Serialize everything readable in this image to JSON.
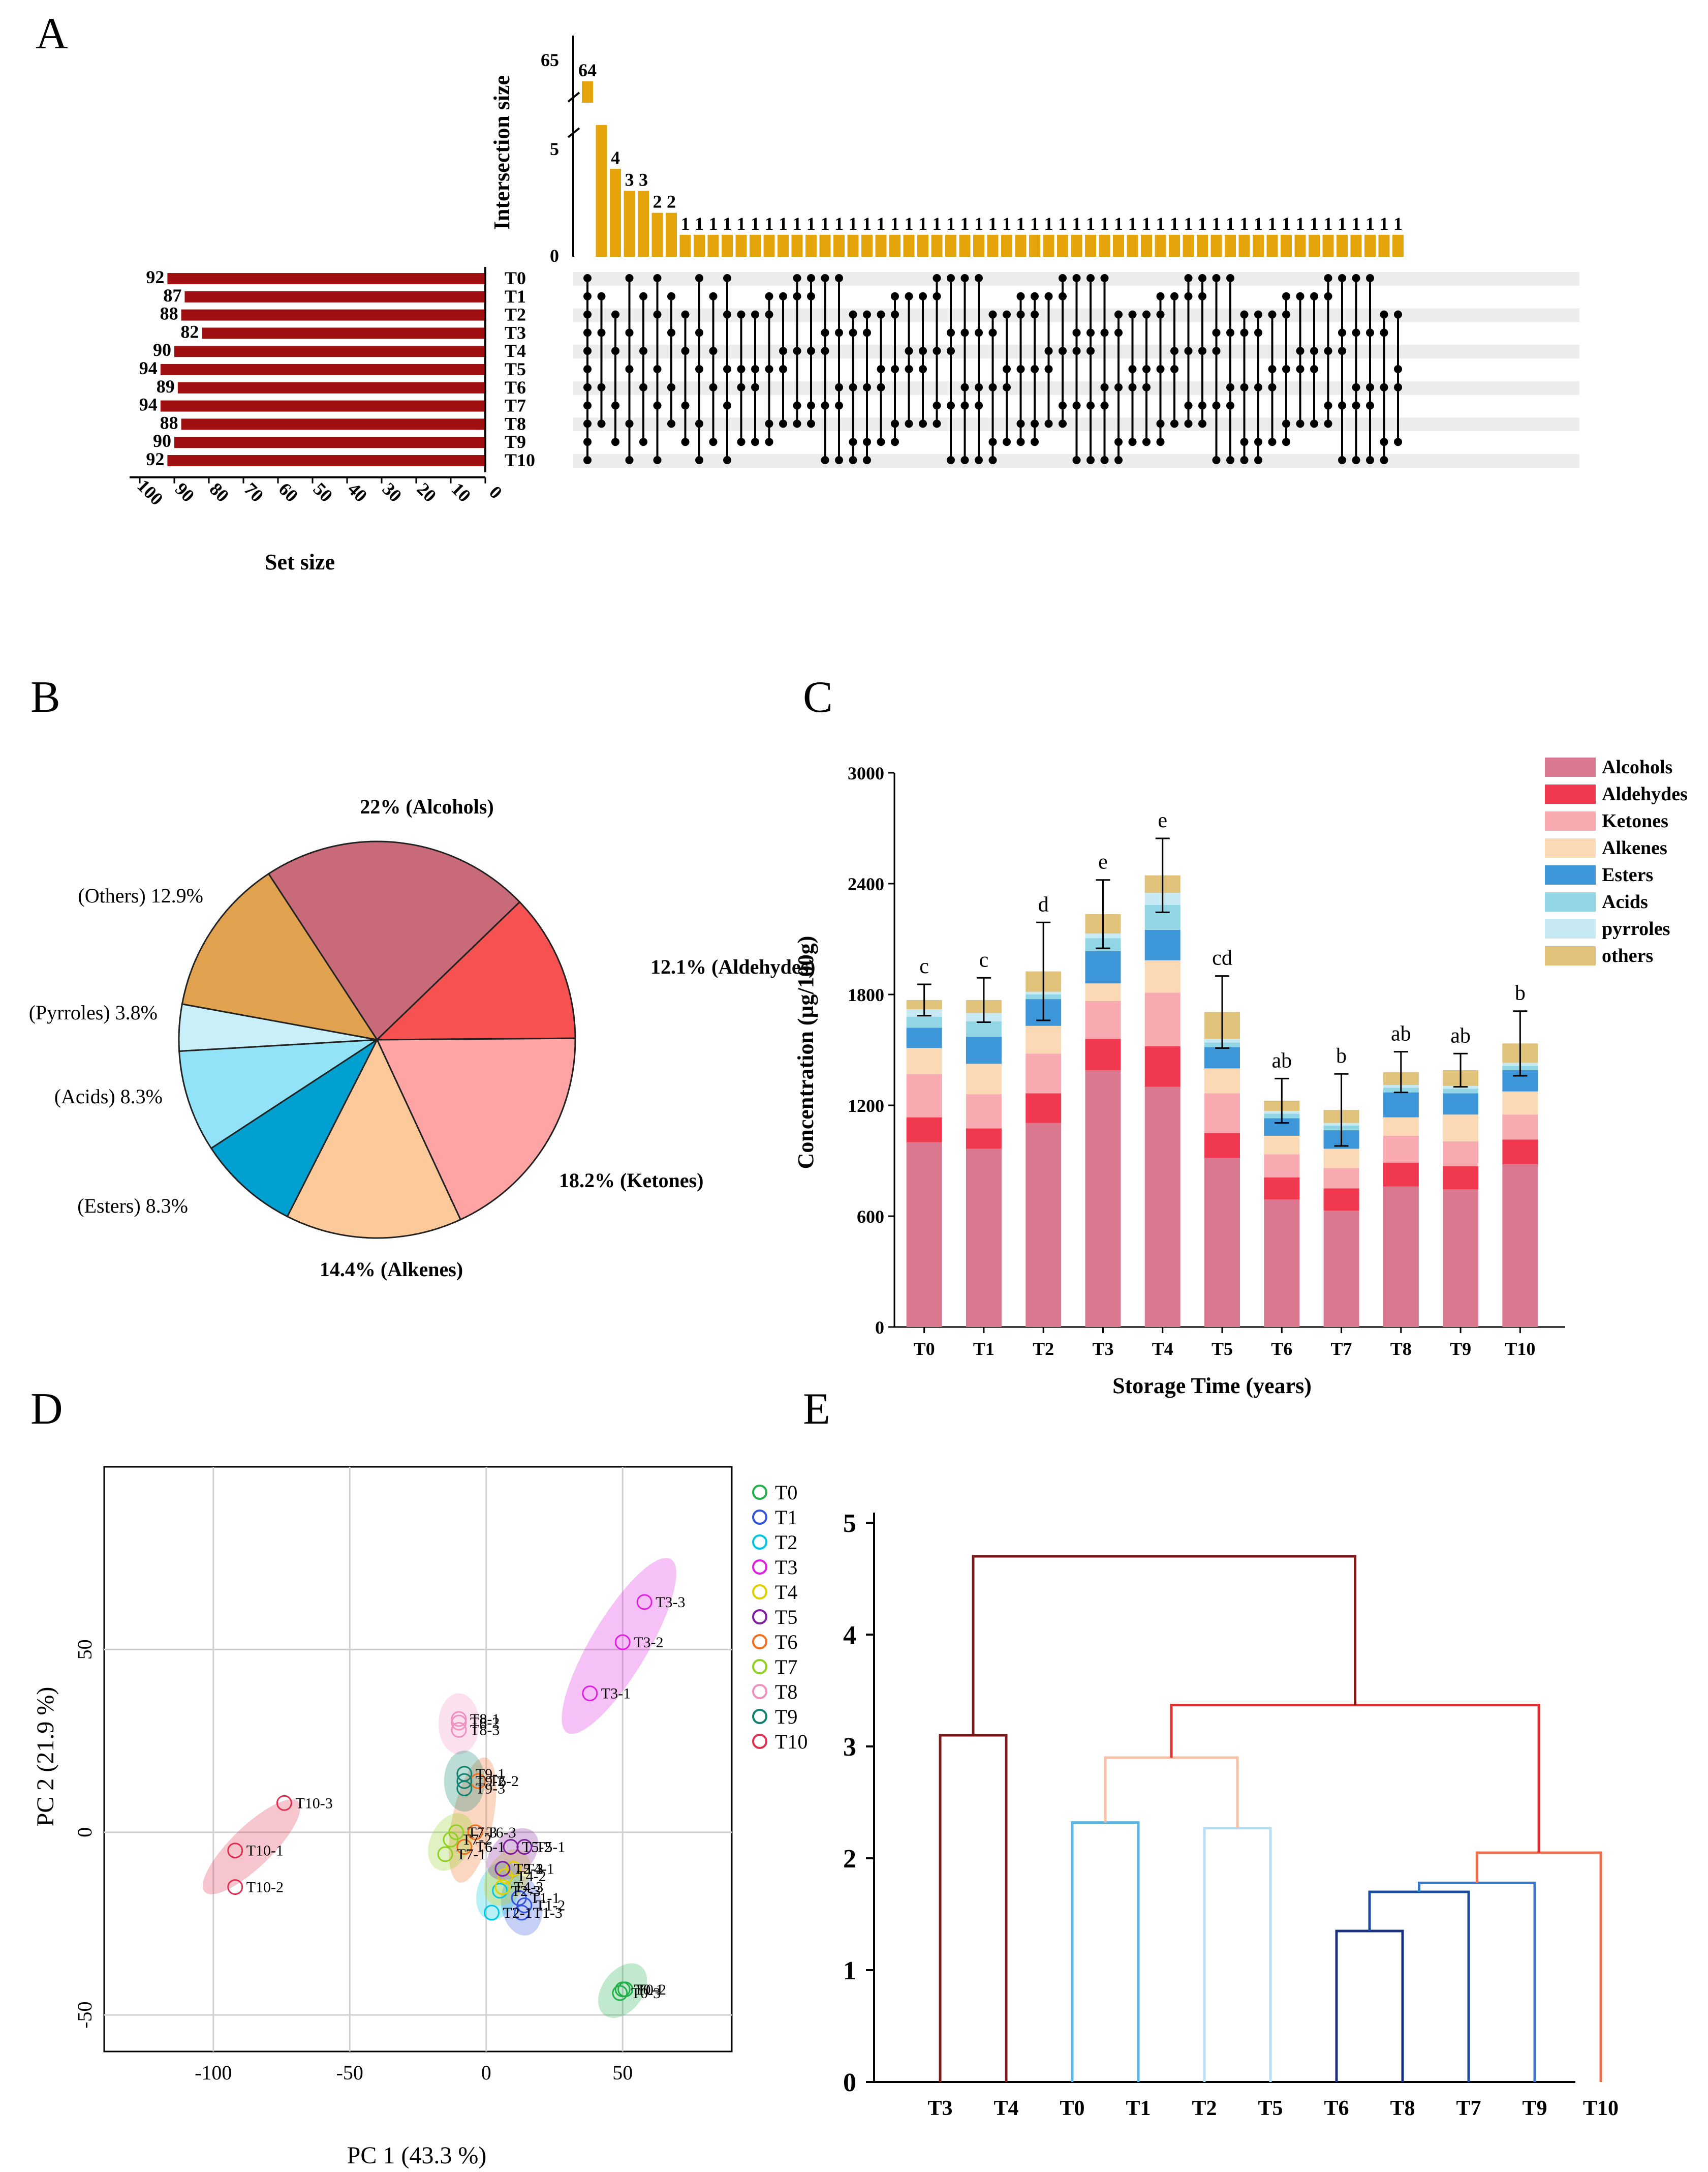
{
  "panels": {
    "a": "A",
    "b": "B",
    "c": "C",
    "d": "D",
    "e": "E"
  },
  "colors": {
    "upset_bar": "#E5A50A",
    "setsize_bar": "#A01010",
    "alcohols": "#D9788F",
    "aldehydes": "#F0384F",
    "ketones": "#F8AAB0",
    "alkenes": "#FCD9B5",
    "esters": "#3D96D8",
    "acids": "#92D6E6",
    "pyrroles": "#C7E9F4",
    "others": "#E0C27A"
  },
  "chart_data": [
    {
      "id": "A",
      "type": "bar",
      "title": "",
      "ylabel": "Intersection size",
      "xlabel": "Set size",
      "y_ticks_upper": [
        "65"
      ],
      "y_ticks_lower": [
        "5",
        "0"
      ],
      "intersection_sizes": [
        64,
        6,
        4,
        3,
        3,
        2,
        2,
        1,
        1,
        1,
        1,
        1,
        1,
        1,
        1,
        1,
        1,
        1,
        1,
        1,
        1,
        1,
        1,
        1,
        1,
        1,
        1,
        1,
        1,
        1,
        1,
        1,
        1,
        1,
        1,
        1,
        1,
        1,
        1,
        1,
        1,
        1,
        1,
        1,
        1,
        1,
        1,
        1,
        1,
        1,
        1,
        1,
        1,
        1,
        1,
        1,
        1,
        1,
        1
      ],
      "intersection_labels": [
        "64",
        "",
        "4",
        "3",
        "3",
        "2",
        "2",
        "1",
        "1",
        "1",
        "1",
        "1",
        "1",
        "1",
        "1",
        "1",
        "1",
        "1",
        "1",
        "1",
        "1",
        "1",
        "1",
        "1",
        "1",
        "1",
        "1",
        "1",
        "1",
        "1",
        "1",
        "1",
        "1",
        "1",
        "1",
        "1",
        "1",
        "1",
        "1",
        "1",
        "1",
        "1",
        "1",
        "1",
        "1",
        "1",
        "1",
        "1",
        "1",
        "1",
        "1",
        "1",
        "1",
        "1",
        "1",
        "1",
        "1",
        "1",
        "1"
      ],
      "sets": [
        "T0",
        "T1",
        "T2",
        "T3",
        "T4",
        "T5",
        "T6",
        "T7",
        "T8",
        "T9",
        "T10"
      ],
      "set_sizes": [
        92,
        87,
        88,
        82,
        90,
        94,
        89,
        94,
        88,
        90,
        92
      ],
      "set_size_ticks": [
        "100",
        "90",
        "80",
        "70",
        "60",
        "50",
        "40",
        "30",
        "20",
        "10",
        "0"
      ]
    },
    {
      "id": "B",
      "type": "pie",
      "slices": [
        {
          "name": "Alcohols",
          "value": 22.0,
          "label": "22% (Alcohols)",
          "color": "#C96A78"
        },
        {
          "name": "Aldehydes",
          "value": 12.1,
          "label": "12.1% (Aldehydes)",
          "color": "#F75252"
        },
        {
          "name": "Ketones",
          "value": 18.2,
          "label": "18.2% (Ketones)",
          "color": "#FFA4A4"
        },
        {
          "name": "Alkenes",
          "value": 14.4,
          "label": "14.4% (Alkenes)",
          "color": "#FCC99A"
        },
        {
          "name": "Esters",
          "value": 8.3,
          "label": "(Esters)  8.3%",
          "color": "#00A0D0"
        },
        {
          "name": "Acids",
          "value": 8.3,
          "label": "(Acids) 8.3%",
          "color": "#93E3F8"
        },
        {
          "name": "Pyrroles",
          "value": 3.8,
          "label": "(Pyrroles) 3.8%",
          "color": "#C9F0F8"
        },
        {
          "name": "Others",
          "value": 12.9,
          "label": "(Others) 12.9%",
          "color": "#E0A24E"
        }
      ]
    },
    {
      "id": "C",
      "type": "bar",
      "stacked": true,
      "xlabel": "Storage Time (years)",
      "ylabel": "Concentration (μg/100g)",
      "ylim": [
        0,
        3000
      ],
      "y_ticks": [
        "0",
        "600",
        "1200",
        "1800",
        "2400",
        "3000"
      ],
      "categories": [
        "T0",
        "T1",
        "T2",
        "T3",
        "T4",
        "T5",
        "T6",
        "T7",
        "T8",
        "T9",
        "T10"
      ],
      "series": [
        {
          "name": "Alcohols",
          "values": [
            1000,
            965,
            1105,
            1390,
            1300,
            915,
            690,
            630,
            760,
            745,
            880
          ]
        },
        {
          "name": "Aldehydes",
          "values": [
            135,
            110,
            160,
            170,
            220,
            135,
            120,
            120,
            130,
            125,
            135
          ]
        },
        {
          "name": "Ketones",
          "values": [
            235,
            185,
            215,
            205,
            290,
            215,
            125,
            110,
            145,
            135,
            135
          ]
        },
        {
          "name": "Alkenes",
          "values": [
            140,
            165,
            150,
            95,
            175,
            135,
            100,
            105,
            100,
            145,
            125
          ]
        },
        {
          "name": "Esters",
          "values": [
            110,
            145,
            145,
            175,
            165,
            115,
            95,
            100,
            135,
            115,
            115
          ]
        },
        {
          "name": "Acids",
          "values": [
            60,
            85,
            25,
            70,
            135,
            25,
            25,
            25,
            25,
            25,
            25
          ]
        },
        {
          "name": "pyrroles",
          "values": [
            40,
            45,
            15,
            25,
            65,
            20,
            15,
            15,
            15,
            15,
            15
          ]
        },
        {
          "name": "others",
          "values": [
            50,
            70,
            110,
            105,
            95,
            145,
            55,
            70,
            70,
            85,
            105
          ]
        }
      ],
      "errors": [
        85,
        120,
        265,
        185,
        200,
        195,
        120,
        195,
        110,
        90,
        175
      ],
      "letters": [
        "c",
        "c",
        "d",
        "e",
        "e",
        "cd",
        "ab",
        "b",
        "ab",
        "ab",
        "b"
      ],
      "legend": [
        "Alcohols",
        "Aldehydes",
        "Ketones",
        "Alkenes",
        "Esters",
        "Acids",
        "pyrroles",
        "others"
      ]
    },
    {
      "id": "D",
      "type": "scatter",
      "xlabel": "PC 1 (43.3 %)",
      "ylabel": "PC 2 (21.9 %)",
      "xlim": [
        -140,
        90
      ],
      "ylim": [
        -60,
        100
      ],
      "x_ticks": [
        "-100",
        "-50",
        "0",
        "50"
      ],
      "y_ticks": [
        "50",
        "0",
        "-50"
      ],
      "groups": [
        {
          "name": "T0",
          "color": "#22B04A",
          "marker": "+",
          "points": [
            {
              "x": 50,
              "y": -43,
              "label": "T0-1"
            },
            {
              "x": 51,
              "y": -43,
              "label": "T0-2"
            },
            {
              "x": 49,
              "y": -44,
              "label": "T0-3"
            }
          ]
        },
        {
          "name": "T1",
          "color": "#3355DD",
          "marker": "x",
          "points": [
            {
              "x": 12,
              "y": -18,
              "label": "T1-1"
            },
            {
              "x": 14,
              "y": -20,
              "label": "T1-2"
            },
            {
              "x": 13,
              "y": -22,
              "label": "T1-3"
            }
          ]
        },
        {
          "name": "T2",
          "color": "#00C8E0",
          "marker": "diamond",
          "points": [
            {
              "x": 2,
              "y": -22,
              "label": "T2-1"
            },
            {
              "x": 6,
              "y": -10,
              "label": "T2-2"
            },
            {
              "x": 5,
              "y": -16,
              "label": "T2-3"
            }
          ]
        },
        {
          "name": "T3",
          "color": "#E020E0",
          "marker": "tri-down",
          "points": [
            {
              "x": 38,
              "y": 38,
              "label": "T3-1"
            },
            {
              "x": 50,
              "y": 52,
              "label": "T3-2"
            },
            {
              "x": 58,
              "y": 63,
              "label": "T3-3"
            }
          ]
        },
        {
          "name": "T4",
          "color": "#E0D000",
          "marker": "box-x",
          "points": [
            {
              "x": 10,
              "y": -10,
              "label": "T4-1"
            },
            {
              "x": 7,
              "y": -12,
              "label": "T4-2"
            },
            {
              "x": 6,
              "y": -15,
              "label": "T4-3"
            }
          ]
        },
        {
          "name": "T5",
          "color": "#8020A0",
          "marker": "star",
          "points": [
            {
              "x": 14,
              "y": -4,
              "label": "T5-1"
            },
            {
              "x": 9,
              "y": -4,
              "label": "T5-2"
            },
            {
              "x": 6,
              "y": -10,
              "label": "T5-3"
            }
          ]
        },
        {
          "name": "T6",
          "color": "#F07020",
          "marker": "diamond-plus",
          "points": [
            {
              "x": -3,
              "y": 14,
              "label": "T6-2"
            },
            {
              "x": -4,
              "y": 0,
              "label": "T6-3"
            },
            {
              "x": -8,
              "y": -4,
              "label": "T6-1"
            }
          ]
        },
        {
          "name": "T7",
          "color": "#90D020",
          "marker": "circle-plus",
          "points": [
            {
              "x": -15,
              "y": -6,
              "label": "T7-1"
            },
            {
              "x": -13,
              "y": -2,
              "label": "T7-2"
            },
            {
              "x": -11,
              "y": 0,
              "label": "T7-3"
            }
          ]
        },
        {
          "name": "T8",
          "color": "#F090C0",
          "marker": "hexagram",
          "points": [
            {
              "x": -10,
              "y": 31,
              "label": "T8-1"
            },
            {
              "x": -10,
              "y": 30,
              "label": "T8-2"
            },
            {
              "x": -10,
              "y": 28,
              "label": "T8-3"
            }
          ]
        },
        {
          "name": "T9",
          "color": "#108070",
          "marker": "box-plus",
          "points": [
            {
              "x": -8,
              "y": 16,
              "label": "T9-1"
            },
            {
              "x": -8,
              "y": 14,
              "label": "T9-2"
            },
            {
              "x": -8,
              "y": 12,
              "label": "T9-3"
            }
          ]
        },
        {
          "name": "T10",
          "color": "#E03050",
          "marker": "tri-up",
          "points": [
            {
              "x": -92,
              "y": -5,
              "label": "T10-1"
            },
            {
              "x": -92,
              "y": -15,
              "label": "T10-2"
            },
            {
              "x": -74,
              "y": 8,
              "label": "T10-3"
            }
          ]
        }
      ]
    },
    {
      "id": "E",
      "type": "dendrogram",
      "ylim": [
        0,
        5
      ],
      "y_ticks": [
        "0",
        "1",
        "2",
        "3",
        "4",
        "5"
      ],
      "leaves": [
        "T3",
        "T4",
        "T0",
        "T1",
        "T2",
        "T5",
        "T6",
        "T8",
        "T7",
        "T9",
        "T10"
      ],
      "merges": [
        {
          "a": "T6",
          "b": "T8",
          "height": 1.35
        },
        {
          "a": "T6+T8",
          "b": "T7",
          "height": 1.7
        },
        {
          "a": "T6+T8+T7",
          "b": "T9",
          "height": 1.78
        },
        {
          "a": "...",
          "b": "T10",
          "height": 2.05
        },
        {
          "a": "T2",
          "b": "T5",
          "height": 2.27
        },
        {
          "a": "T0",
          "b": "T1",
          "height": 2.32
        },
        {
          "a": "T0+T1",
          "b": "T2+T5",
          "height": 2.9
        },
        {
          "a": "T3",
          "b": "T4",
          "height": 3.1
        },
        {
          "a": "T0..T5",
          "b": "T6..T10",
          "height": 3.37
        },
        {
          "a": "T3+T4",
          "b": "rest",
          "height": 4.7
        }
      ]
    }
  ]
}
